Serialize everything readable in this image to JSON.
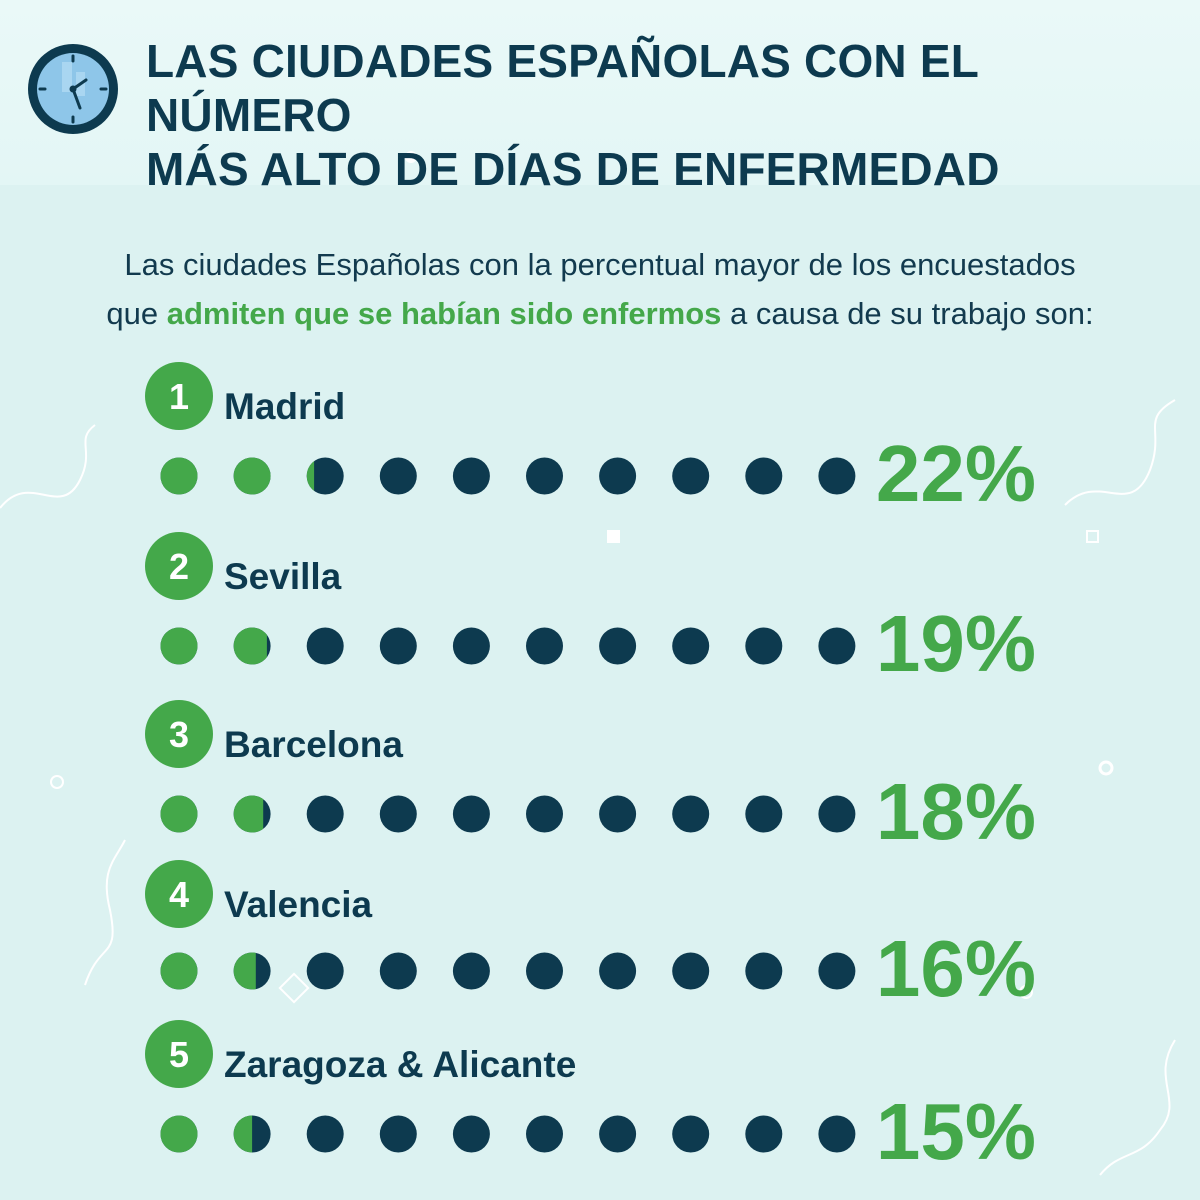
{
  "title_line1": "LAS CIUDADES ESPAÑOLAS CON EL NÚMERO",
  "title_line2": "MÁS ALTO DE DÍAS DE ENFERMEDAD",
  "intro": {
    "line1": "Las ciudades Españolas con la percentual mayor de los encuestados",
    "line2_before": "que ",
    "line2_highlight": "admiten que se habían sido enfermos",
    "line2_after": " a causa de su trabajo son:"
  },
  "icons": {
    "header": "clock-icon"
  },
  "colors": {
    "accent_green": "#44a84a",
    "dark_navy": "#0d3a4f",
    "background": "#dcf2f1",
    "header_background": "#e6f7f6"
  },
  "chart_data": {
    "type": "pictogram",
    "dots_per_row": 10,
    "value_unit": "%",
    "categories": [
      "Madrid",
      "Sevilla",
      "Barcelona",
      "Valencia",
      "Zaragoza & Alicante"
    ],
    "ranks": [
      "1",
      "2",
      "3",
      "4",
      "5"
    ],
    "values": [
      22,
      19,
      18,
      16,
      15
    ],
    "value_labels": [
      "22%",
      "19%",
      "18%",
      "16%",
      "15%"
    ]
  }
}
